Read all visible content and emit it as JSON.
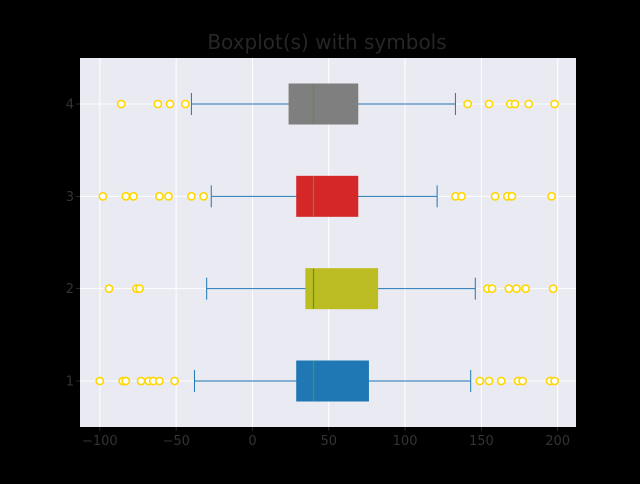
{
  "chart_data": {
    "type": "boxplot",
    "orientation": "horizontal",
    "title": "Boxplot(s) with symbols",
    "xlabel": "",
    "ylabel": "",
    "xlim": [
      -113,
      212
    ],
    "xticks": [
      -100,
      -50,
      0,
      50,
      100,
      150,
      200
    ],
    "categories": [
      "1",
      "2",
      "3",
      "4"
    ],
    "grid": true,
    "colors": {
      "figure_bg": "#000000",
      "axes_bg": "#eaeaf2",
      "grid": "#ffffff",
      "tick_text": "#333333",
      "title_text": "#262626",
      "whisker": "#1f77b4",
      "median": "#4a9a3a",
      "flier_fill": "#ffffff",
      "flier_edge": "#ffd700"
    },
    "series": [
      {
        "category": "1",
        "box_color": "#1f77b4",
        "q1": 29,
        "median": 40,
        "q3": 76,
        "whisker_low": -38,
        "whisker_high": 143,
        "fliers": [
          -100,
          -85,
          -83,
          -73,
          -68,
          -65,
          -61,
          -51,
          149,
          155,
          163,
          174,
          177,
          195,
          198
        ]
      },
      {
        "category": "2",
        "box_color": "#bcbd22",
        "q1": 35,
        "median": 40,
        "q3": 82,
        "whisker_low": -30,
        "whisker_high": 146,
        "fliers": [
          -94,
          -76,
          -74,
          154,
          157,
          168,
          173,
          179,
          197
        ]
      },
      {
        "category": "3",
        "box_color": "#d62728",
        "q1": 29,
        "median": 40,
        "q3": 69,
        "whisker_low": -27,
        "whisker_high": 121,
        "fliers": [
          -98,
          -83,
          -78,
          -61,
          -55,
          -40,
          -32,
          133,
          137,
          159,
          167,
          170,
          196
        ]
      },
      {
        "category": "4",
        "box_color": "#7f7f7f",
        "q1": 24,
        "median": 40,
        "q3": 69,
        "whisker_low": -40,
        "whisker_high": 133,
        "fliers": [
          -86,
          -62,
          -54,
          -44,
          141,
          155,
          169,
          172,
          181,
          198
        ]
      }
    ]
  }
}
